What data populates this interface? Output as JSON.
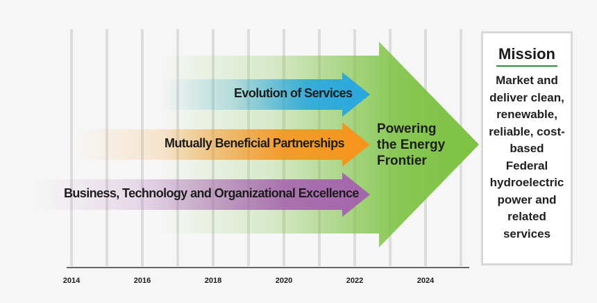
{
  "timeline": {
    "years": [
      "2014",
      "2016",
      "2018",
      "2020",
      "2022",
      "2024"
    ]
  },
  "arrows": {
    "evolution": "Evolution of Services",
    "partnerships": "Mutually Beneficial Partnerships",
    "excellence": "Business, Technology and Organizational Excellence",
    "main": [
      "Powering",
      "the Energy",
      "Frontier"
    ]
  },
  "mission": {
    "title": "Mission",
    "text": "Market and deliver clean, renewable, reliable, cost-based Federal hydroelectric power and related services"
  },
  "colors": {
    "green": "#7cc242",
    "blue": "#29a7df",
    "orange": "#f7941d",
    "purple": "#a565ad",
    "divider": "#2e8b3d"
  }
}
